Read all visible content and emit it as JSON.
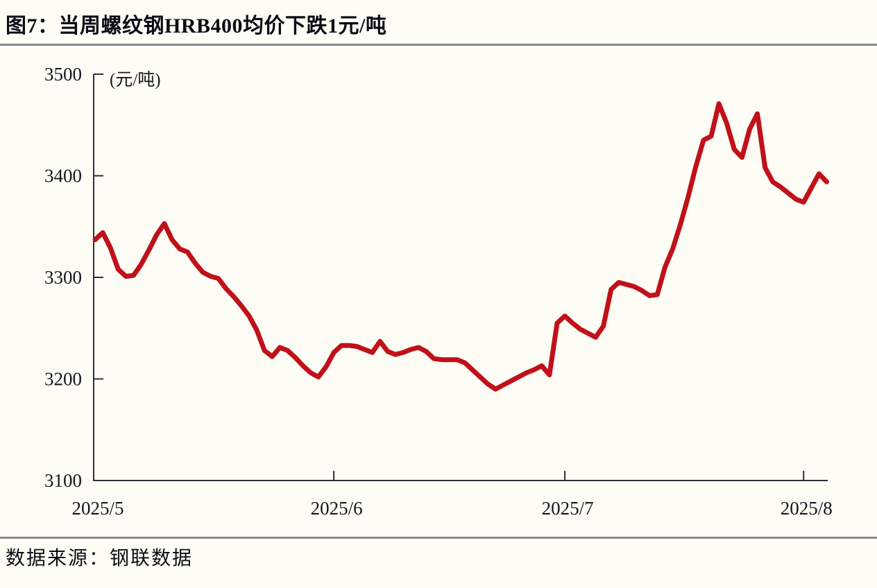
{
  "page": {
    "title": "图7：当周螺纹钢HRB400均价下跌1元/吨",
    "source": "数据来源：钢联数据"
  },
  "colors": {
    "line": "#c0111a",
    "axis": "#2e2e3a",
    "text": "#16161f",
    "rule": "#8a8a8a",
    "background": "#fdfcf5"
  },
  "chart_data": {
    "type": "line",
    "title": "当周螺纹钢HRB400均价下跌1元/吨",
    "unit_label": "(元/吨)",
    "ylabel": "元/吨",
    "ylim": [
      3100,
      3500
    ],
    "yticks": [
      3500,
      3400,
      3300,
      3200,
      3100
    ],
    "x_start": "2025/5/1",
    "x_step_days": 1,
    "xticks": [
      {
        "label": "2025/5",
        "day": 0
      },
      {
        "label": "2025/6",
        "day": 31
      },
      {
        "label": "2025/7",
        "day": 61
      },
      {
        "label": "2025/8",
        "day": 92
      }
    ],
    "grid": false,
    "legend_position": "none",
    "series": [
      {
        "name": "螺纹钢HRB400均价",
        "color": "#c0111a",
        "values": [
          3337,
          3344,
          3329,
          3308,
          3301,
          3302,
          3313,
          3327,
          3342,
          3353,
          3337,
          3328,
          3325,
          3314,
          3305,
          3301,
          3299,
          3289,
          3281,
          3272,
          3262,
          3248,
          3228,
          3222,
          3231,
          3228,
          3221,
          3213,
          3206,
          3202,
          3212,
          3226,
          3233,
          3233,
          3232,
          3229,
          3226,
          3237,
          3227,
          3224,
          3226,
          3229,
          3231,
          3227,
          3220,
          3219,
          3219,
          3219,
          3216,
          3209,
          3202,
          3195,
          3190,
          3194,
          3198,
          3202,
          3206,
          3209,
          3213,
          3204,
          3255,
          3262,
          3255,
          3249,
          3245,
          3241,
          3252,
          3288,
          3295,
          3293,
          3291,
          3287,
          3282,
          3283,
          3310,
          3328,
          3352,
          3379,
          3409,
          3435,
          3439,
          3471,
          3452,
          3426,
          3418,
          3446,
          3461,
          3408,
          3394,
          3389,
          3383,
          3377,
          3374,
          3388,
          3402,
          3394
        ]
      }
    ]
  }
}
